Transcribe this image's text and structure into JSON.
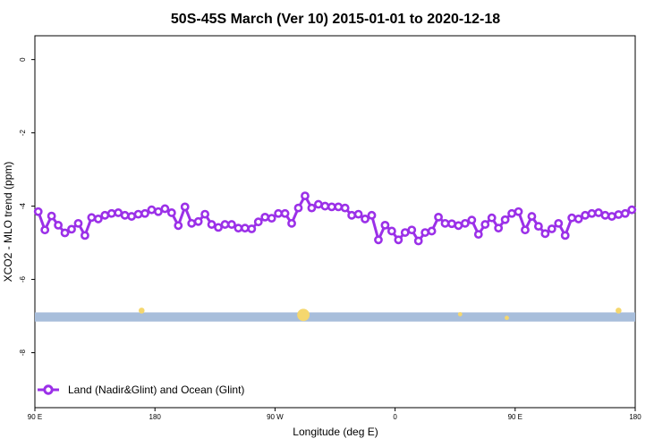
{
  "chart_data": {
    "type": "line",
    "title": "50S-45S March (Ver 10)   2015-01-01 to 2020-12-18",
    "xlabel": "Longitude (deg E)",
    "ylabel": "XCO2 - MLO trend (ppm)",
    "xlim": [
      90,
      450
    ],
    "ylim": [
      -9.5,
      0.65
    ],
    "x_tick_values": [
      90,
      162,
      234,
      306,
      378,
      450
    ],
    "x_tick_labels": [
      "90 E",
      "180",
      "90 W",
      "0",
      "90 E",
      "180"
    ],
    "y_ticks": [
      0,
      -2,
      -4,
      -6,
      -8
    ],
    "grid": false,
    "legend_position": "bottom-left",
    "colors": {
      "series": "#9b30e8",
      "band": "#a8bedb",
      "markers_yellow": "#f5d76e"
    },
    "series": [
      {
        "name": "Land (Nadir&Glint) and Ocean (Glint)",
        "x": [
          92,
          96,
          100,
          104,
          108,
          112,
          116,
          120,
          124,
          128,
          132,
          136,
          140,
          144,
          148,
          152,
          156,
          160,
          164,
          168,
          172,
          176,
          180,
          184,
          188,
          192,
          196,
          200,
          204,
          208,
          212,
          216,
          220,
          224,
          228,
          232,
          236,
          240,
          244,
          248,
          252,
          256,
          260,
          264,
          268,
          272,
          276,
          280,
          284,
          288,
          292,
          296,
          300,
          304,
          308,
          312,
          316,
          320,
          324,
          328,
          332,
          336,
          340,
          344,
          348,
          352,
          356,
          360,
          364,
          368,
          372,
          376,
          380,
          384,
          388,
          392,
          396,
          400,
          404,
          408,
          412,
          416,
          420,
          424,
          428,
          432,
          436,
          440,
          444,
          448
        ],
        "y": [
          -4.15,
          -4.65,
          -4.27,
          -4.52,
          -4.73,
          -4.63,
          -4.47,
          -4.8,
          -4.31,
          -4.35,
          -4.25,
          -4.2,
          -4.18,
          -4.25,
          -4.28,
          -4.22,
          -4.2,
          -4.1,
          -4.15,
          -4.07,
          -4.18,
          -4.53,
          -4.02,
          -4.47,
          -4.42,
          -4.22,
          -4.5,
          -4.58,
          -4.5,
          -4.5,
          -4.6,
          -4.6,
          -4.62,
          -4.43,
          -4.3,
          -4.33,
          -4.2,
          -4.2,
          -4.47,
          -4.05,
          -3.72,
          -4.05,
          -3.95,
          -4.0,
          -4.02,
          -4.02,
          -4.05,
          -4.25,
          -4.22,
          -4.35,
          -4.25,
          -4.92,
          -4.52,
          -4.68,
          -4.92,
          -4.72,
          -4.65,
          -4.95,
          -4.72,
          -4.68,
          -4.3,
          -4.47,
          -4.48,
          -4.53,
          -4.47,
          -4.38,
          -4.77,
          -4.5,
          -4.32,
          -4.6,
          -4.37,
          -4.2,
          -4.15,
          -4.65,
          -4.28,
          -4.55,
          -4.75,
          -4.62,
          -4.47,
          -4.8,
          -4.32,
          -4.35,
          -4.25,
          -4.2,
          -4.18,
          -4.25,
          -4.28,
          -4.23,
          -4.2,
          -4.1
        ]
      }
    ],
    "band": {
      "y_min": -7.15,
      "y_max": -6.9
    },
    "yellow_markers": [
      {
        "x": 154,
        "y": -6.85,
        "size": 1
      },
      {
        "x": 251,
        "y": -6.97,
        "size": 3
      },
      {
        "x": 345,
        "y": -6.95,
        "size": 0.5
      },
      {
        "x": 373,
        "y": -7.05,
        "size": 0.5
      },
      {
        "x": 440,
        "y": -6.85,
        "size": 1
      }
    ]
  }
}
